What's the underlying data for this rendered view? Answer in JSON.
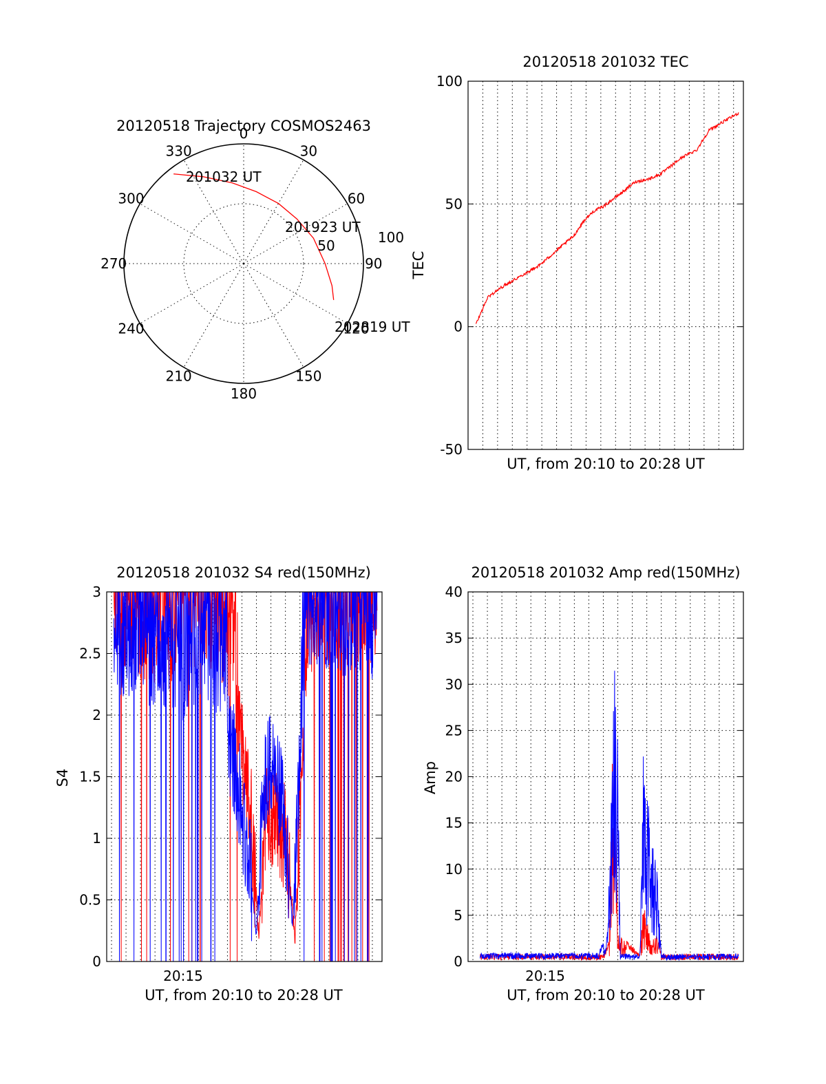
{
  "chart_data": [
    {
      "type": "polar",
      "title": "20120518 Trajectory COSMOS2463",
      "angle_labels": [
        "0",
        "30",
        "60",
        "90",
        "120",
        "150",
        "180",
        "210",
        "240",
        "270",
        "300",
        "330"
      ],
      "radial_labels": [
        "50",
        "100"
      ],
      "rlim": [
        0,
        100
      ],
      "grid": true,
      "series": [
        {
          "color": "#ff0000",
          "points": [
            {
              "az": 322,
              "r": 95
            },
            {
              "az": 335,
              "r": 80
            },
            {
              "az": 352,
              "r": 68
            },
            {
              "az": 10,
              "r": 61
            },
            {
              "az": 30,
              "r": 58
            },
            {
              "az": 50,
              "r": 58
            },
            {
              "az": 70,
              "r": 62
            },
            {
              "az": 90,
              "r": 68
            },
            {
              "az": 104,
              "r": 76
            },
            {
              "az": 112,
              "r": 81
            }
          ]
        }
      ],
      "annotations": [
        {
          "text": "201032 UT",
          "az": 322,
          "r": 95
        },
        {
          "text": "201923 UT",
          "az": 65,
          "r": 63
        },
        {
          "text": "202819 UT",
          "az": 112,
          "r": 81
        }
      ]
    },
    {
      "type": "line",
      "title": "20120518 201032 TEC",
      "xlabel": "UT, from 20:10 to 20:28 UT",
      "ylabel": "TEC",
      "xlim": [
        "20:10:00",
        "20:28:40"
      ],
      "ylim": [
        -50,
        100
      ],
      "yticks": [
        "-50",
        "0",
        "50",
        "100"
      ],
      "grid": true,
      "series": [
        {
          "color": "#ff0000",
          "x": [
            "20:10:32",
            "20:11:20",
            "20:12:30",
            "20:13:40",
            "20:14:50",
            "20:16:00",
            "20:17:10",
            "20:17:50",
            "20:18:30",
            "20:19:10",
            "20:19:50",
            "20:20:30",
            "20:21:20",
            "20:22:10",
            "20:23:00",
            "20:23:40",
            "20:24:30",
            "20:25:30",
            "20:26:20",
            "20:27:10",
            "20:28:20"
          ],
          "values": [
            1,
            12,
            17,
            21,
            25,
            31,
            37,
            43,
            47,
            49,
            52,
            55,
            59,
            60,
            62,
            65,
            69,
            72,
            80,
            83,
            87
          ]
        }
      ]
    },
    {
      "type": "line",
      "title": "20120518 201032 S4 red(150MHz)",
      "xlabel": "UT, from 20:10 to 20:28 UT",
      "ylabel": "S4",
      "xticks": [
        "20:15"
      ],
      "xlim": [
        "20:09:40",
        "20:28:40"
      ],
      "ylim": [
        0,
        3
      ],
      "yticks": [
        "0",
        "0.5",
        "1",
        "1.5",
        "2",
        "2.5",
        "3"
      ],
      "grid": true,
      "series": [
        {
          "color": "#ff0000",
          "x": [
            "20:10:10",
            "20:12:00",
            "20:13:30",
            "20:15:00",
            "20:16:30",
            "20:18:00",
            "20:19:00",
            "20:19:40",
            "20:20:10",
            "20:20:40",
            "20:21:20",
            "20:22:00",
            "20:22:40",
            "20:23:30",
            "20:24:20",
            "20:26:00",
            "20:28:20"
          ],
          "values": [
            2.6,
            2.5,
            2.4,
            2.6,
            2.6,
            2.4,
            1.7,
            1.1,
            0.2,
            1.2,
            1.2,
            1.0,
            0.2,
            2.5,
            2.6,
            2.6,
            2.6
          ]
        },
        {
          "color": "#0000ff",
          "x": [
            "20:10:10",
            "20:11:30",
            "20:13:00",
            "20:14:30",
            "20:16:00",
            "20:17:30",
            "20:18:40",
            "20:19:30",
            "20:20:00",
            "20:20:30",
            "20:21:10",
            "20:21:50",
            "20:22:30",
            "20:23:20",
            "20:24:20",
            "20:26:00",
            "20:28:20"
          ],
          "values": [
            2.4,
            2.3,
            2.2,
            2.1,
            2.3,
            2.2,
            1.5,
            0.8,
            0.2,
            1.5,
            1.6,
            1.2,
            0.3,
            2.5,
            2.6,
            2.5,
            2.5
          ]
        }
      ]
    },
    {
      "type": "line",
      "title": "20120518 201032 Amp red(150MHz)",
      "xlabel": "UT, from 20:10 to 20:28 UT",
      "ylabel": "Amp",
      "xticks": [
        "20:15"
      ],
      "xlim": [
        "20:09:40",
        "20:28:40"
      ],
      "ylim": [
        0,
        40
      ],
      "yticks": [
        "0",
        "5",
        "10",
        "15",
        "20",
        "25",
        "30",
        "35",
        "40"
      ],
      "grid": true,
      "series": [
        {
          "color": "#ff0000",
          "x": [
            "20:10:30",
            "20:19:00",
            "20:19:25",
            "20:19:35",
            "20:19:50",
            "20:20:00",
            "20:21:30",
            "20:21:45",
            "20:22:00",
            "20:22:15",
            "20:22:40",
            "20:23:00",
            "20:28:20"
          ],
          "values": [
            0.5,
            0.5,
            2,
            23.5,
            20,
            3,
            0.5,
            6,
            5,
            2,
            3,
            0.5,
            0.5
          ]
        },
        {
          "color": "#0000ff",
          "x": [
            "20:10:30",
            "20:14:00",
            "20:18:40",
            "20:19:15",
            "20:19:30",
            "20:19:45",
            "20:20:00",
            "20:20:10",
            "20:21:30",
            "20:21:45",
            "20:22:00",
            "20:22:20",
            "20:22:40",
            "20:23:00",
            "20:28:20"
          ],
          "values": [
            0.6,
            0.6,
            0.6,
            3,
            15,
            32.5,
            25,
            0.5,
            0.5,
            23,
            18,
            15,
            11,
            0.5,
            0.5
          ]
        }
      ]
    }
  ]
}
